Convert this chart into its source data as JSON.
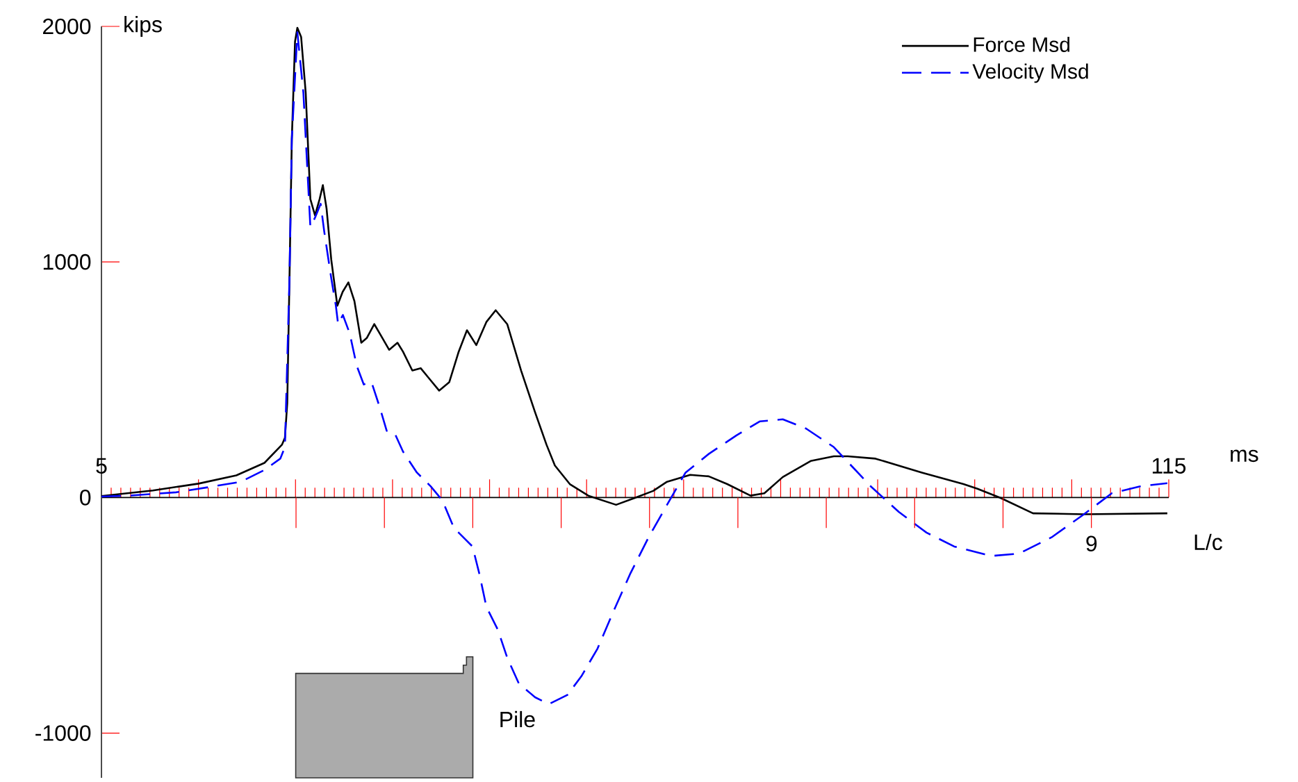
{
  "chart_data": {
    "type": "line",
    "xlabel": "ms",
    "ylabel": "kips",
    "x2label": "L/c",
    "xlim": [
      5,
      115
    ],
    "xticks": [
      5,
      {
        "value": 15,
        "label": null
      },
      {
        "value": 25,
        "label": null
      },
      {
        "value": 35,
        "label": null
      },
      {
        "value": 45,
        "label": null
      },
      {
        "value": 55,
        "label": null
      },
      {
        "value": 65,
        "label": null
      },
      {
        "value": 75,
        "label": null
      },
      {
        "value": 85,
        "label": null
      },
      {
        "value": 95,
        "label": null
      },
      {
        "value": 105,
        "label": null
      },
      115
    ],
    "ylim": [
      -1190,
      2000
    ],
    "yticks": [
      -1000,
      0,
      1000,
      2000
    ],
    "legend": "top right",
    "annotations": [
      "Pile",
      "9"
    ],
    "series": [
      {
        "name": "Force Msd",
        "color": "#000000",
        "line_style": "solid",
        "x": [
          5,
          10.3,
          15.0,
          18.9,
          21.8,
          23.6,
          23.91,
          24.15,
          24.38,
          24.62,
          24.95,
          25.19,
          25.58,
          26.05,
          26.53,
          27.01,
          27.49,
          27.82,
          28.2,
          28.68,
          29.31,
          29.86,
          30.45,
          31.07,
          31.78,
          32.36,
          33.12,
          33.69,
          34.65,
          35.51,
          36.08,
          37.04,
          37.9,
          38.7,
          39.8,
          40.85,
          41.81,
          42.67,
          43.63,
          44.67,
          45.63,
          46.82,
          48.25,
          49.69,
          50.87,
          51.73,
          53.27,
          55.17,
          58.04,
          59.96,
          61.86,
          63.29,
          65.68,
          67.59,
          69.49,
          71.89,
          73.32,
          75.22,
          78.09,
          80.48,
          81.91,
          84.78,
          89.55,
          93.84,
          95.28,
          97.67,
          101.01,
          106.26,
          114.85
        ],
        "values": [
          6,
          30,
          59,
          94,
          147,
          224,
          254,
          401,
          932,
          1522,
          1935,
          1994,
          1955,
          1719,
          1267,
          1198,
          1268,
          1326,
          1227,
          1011,
          814,
          873,
          913,
          834,
          657,
          678,
          736,
          696,
          627,
          657,
          619,
          539,
          549,
          509,
          454,
          490,
          618,
          710,
          647,
          745,
          795,
          736,
          539,
          362,
          224,
          136,
          57,
          8,
          -31,
          -2,
          28,
          67,
          96,
          90,
          57,
          8,
          18,
          87,
          155,
          175,
          175,
          165,
          106,
          57,
          37,
          -2,
          -67,
          -71,
          -67
        ]
      },
      {
        "name": "Velocity Msd",
        "color": "#0000ff",
        "line_style": "dashed",
        "x": [
          5,
          7.86,
          12.69,
          16.5,
          19.37,
          21.76,
          23.43,
          23.91,
          24.38,
          24.62,
          25.19,
          25.81,
          26.53,
          27.01,
          27.59,
          27.96,
          28.68,
          29.16,
          29.39,
          29.88,
          30.59,
          31.31,
          32.03,
          32.83,
          33.69,
          34.4,
          35.22,
          36.08,
          37.51,
          38.94,
          40.13,
          41.34,
          41.81,
          43.24,
          43.96,
          44.67,
          45.86,
          46.82,
          48.01,
          49.69,
          51.12,
          53.02,
          54.46,
          56.13,
          57.56,
          59.47,
          61.39,
          63.29,
          65.2,
          67.59,
          70.45,
          72.84,
          75.22,
          77.61,
          80.48,
          84.3,
          87.17,
          90.03,
          92.89,
          96.71,
          99.57,
          102.92,
          106.26,
          109.13,
          111.99,
          114.85
        ],
        "values": [
          4,
          8,
          22,
          47,
          67,
          116,
          165,
          214,
          932,
          1522,
          1975,
          1719,
          1149,
          1188,
          1247,
          1129,
          932,
          814,
          736,
          775,
          696,
          559,
          480,
          490,
          382,
          283,
          273,
          195,
          106,
          47,
          -12,
          -130,
          -149,
          -208,
          -326,
          -464,
          -562,
          -680,
          -789,
          -848,
          -877,
          -838,
          -759,
          -641,
          -503,
          -326,
          -169,
          -31,
          106,
          185,
          264,
          323,
          332,
          293,
          214,
          47,
          -61,
          -149,
          -208,
          -248,
          -238,
          -169,
          -71,
          18,
          47,
          61
        ]
      }
    ]
  }
}
